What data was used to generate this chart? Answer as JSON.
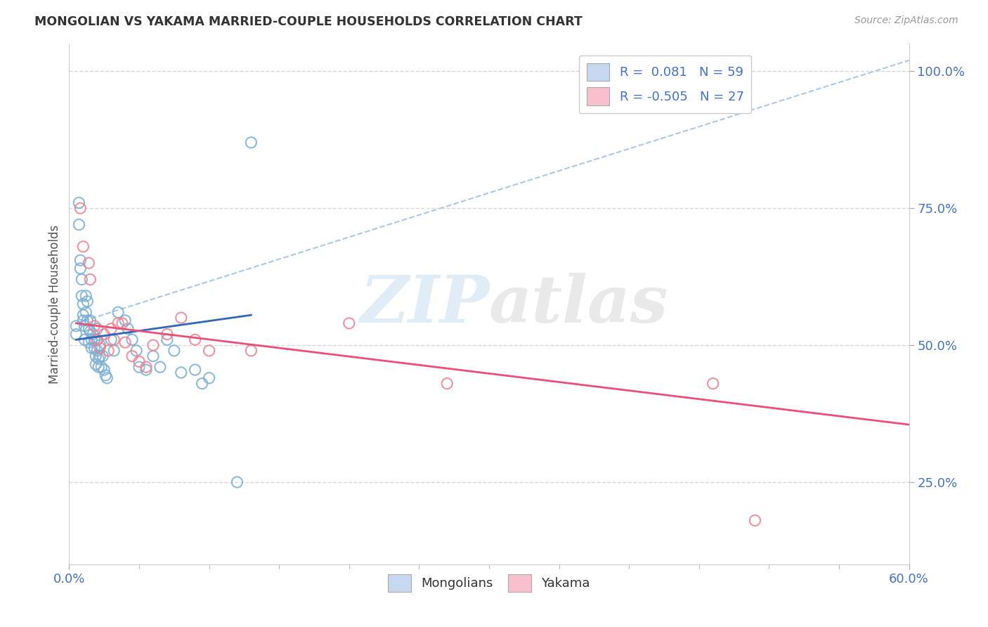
{
  "title": "MONGOLIAN VS YAKAMA MARRIED-COUPLE HOUSEHOLDS CORRELATION CHART",
  "source": "Source: ZipAtlas.com",
  "ylabel": "Married-couple Households",
  "watermark_zip": "ZIP",
  "watermark_atlas": "atlas",
  "mongolian_R": 0.081,
  "mongolian_N": 59,
  "yakama_R": -0.505,
  "yakama_N": 27,
  "mongolian_color": "#7bafd4",
  "yakama_color": "#f08090",
  "mongolian_line_color": "#3366bb",
  "yakama_line_color": "#e8507a",
  "dash_line_color": "#aac8e8",
  "xlim": [
    0.0,
    0.6
  ],
  "ylim": [
    0.1,
    1.05
  ],
  "yticks": [
    0.25,
    0.5,
    0.75,
    1.0
  ],
  "ytick_labels": [
    "25.0%",
    "50.0%",
    "75.0%",
    "100.0%"
  ],
  "background_color": "#ffffff",
  "grid_color": "#d8d8d8",
  "mongolian_x": [
    0.005,
    0.005,
    0.007,
    0.007,
    0.008,
    0.008,
    0.009,
    0.009,
    0.01,
    0.01,
    0.01,
    0.011,
    0.011,
    0.012,
    0.012,
    0.013,
    0.013,
    0.014,
    0.014,
    0.015,
    0.015,
    0.016,
    0.016,
    0.017,
    0.018,
    0.018,
    0.019,
    0.019,
    0.02,
    0.02,
    0.02,
    0.021,
    0.021,
    0.022,
    0.022,
    0.023,
    0.024,
    0.025,
    0.026,
    0.027,
    0.03,
    0.032,
    0.035,
    0.04,
    0.042,
    0.045,
    0.048,
    0.05,
    0.055,
    0.06,
    0.065,
    0.07,
    0.075,
    0.08,
    0.09,
    0.095,
    0.1,
    0.12,
    0.13
  ],
  "mongolian_y": [
    0.535,
    0.52,
    0.76,
    0.72,
    0.655,
    0.64,
    0.62,
    0.59,
    0.575,
    0.555,
    0.545,
    0.535,
    0.51,
    0.59,
    0.56,
    0.58,
    0.545,
    0.53,
    0.505,
    0.545,
    0.525,
    0.51,
    0.495,
    0.52,
    0.51,
    0.495,
    0.48,
    0.465,
    0.53,
    0.51,
    0.49,
    0.475,
    0.46,
    0.5,
    0.48,
    0.46,
    0.48,
    0.455,
    0.445,
    0.44,
    0.51,
    0.49,
    0.56,
    0.545,
    0.53,
    0.51,
    0.49,
    0.46,
    0.455,
    0.48,
    0.46,
    0.51,
    0.49,
    0.45,
    0.455,
    0.43,
    0.44,
    0.25,
    0.87
  ],
  "yakama_x": [
    0.008,
    0.01,
    0.014,
    0.015,
    0.018,
    0.02,
    0.022,
    0.025,
    0.028,
    0.03,
    0.032,
    0.035,
    0.038,
    0.04,
    0.045,
    0.05,
    0.055,
    0.06,
    0.07,
    0.08,
    0.09,
    0.1,
    0.13,
    0.2,
    0.27,
    0.46,
    0.49
  ],
  "yakama_y": [
    0.75,
    0.68,
    0.65,
    0.62,
    0.535,
    0.51,
    0.495,
    0.52,
    0.49,
    0.53,
    0.51,
    0.54,
    0.54,
    0.505,
    0.48,
    0.47,
    0.46,
    0.5,
    0.52,
    0.55,
    0.51,
    0.49,
    0.49,
    0.54,
    0.43,
    0.43,
    0.18
  ],
  "mongo_line_x": [
    0.005,
    0.13
  ],
  "mongo_line_y": [
    0.51,
    0.555
  ],
  "yakama_line_x": [
    0.005,
    0.6
  ],
  "yakama_line_y": [
    0.54,
    0.355
  ],
  "dash_line_x": [
    0.005,
    0.6
  ],
  "dash_line_y": [
    0.54,
    1.02
  ]
}
